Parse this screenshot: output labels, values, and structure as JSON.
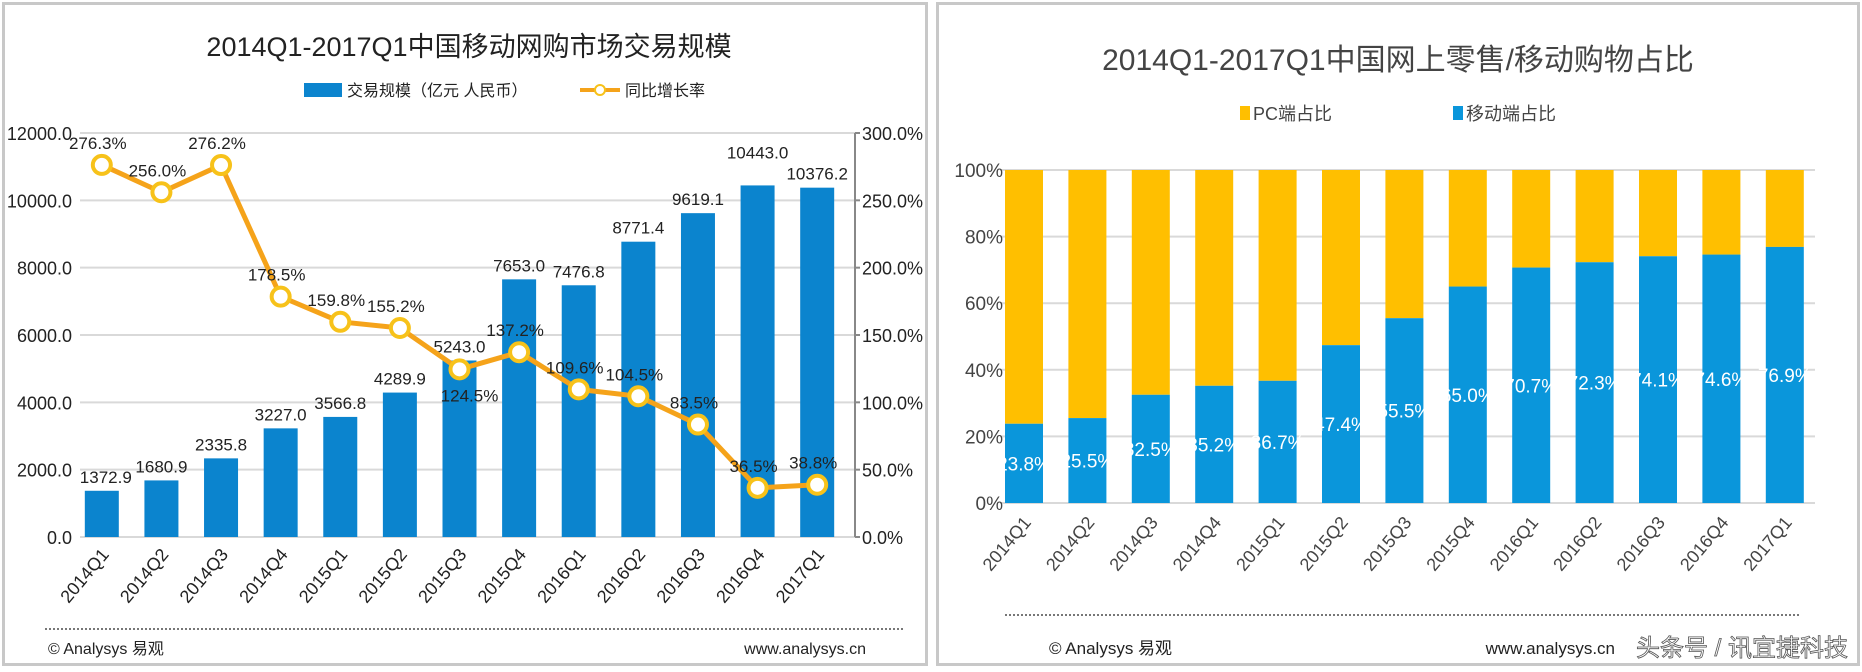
{
  "chart_data": [
    {
      "type": "bar+line",
      "title": "2014Q1-2017Q1中国移动网购市场交易规模",
      "categories": [
        "2014Q1",
        "2014Q2",
        "2014Q3",
        "2014Q4",
        "2015Q1",
        "2015Q2",
        "2015Q3",
        "2015Q4",
        "2016Q1",
        "2016Q2",
        "2016Q3",
        "2016Q4",
        "2017Q1"
      ],
      "series": [
        {
          "name": "交易规模（亿元 人民币）",
          "type": "bar",
          "axis": "left",
          "color": "#0B84CE",
          "values": [
            1372.9,
            1680.9,
            2335.8,
            3227.0,
            3566.8,
            4289.9,
            5243.0,
            7653.0,
            7476.8,
            8771.4,
            9619.1,
            10443.0,
            10376.2
          ]
        },
        {
          "name": "同比增长率",
          "type": "line",
          "axis": "right",
          "color": "#F5A31A",
          "values": [
            276.3,
            256.0,
            276.2,
            178.5,
            159.8,
            155.2,
            124.5,
            137.2,
            109.6,
            104.5,
            83.5,
            36.5,
            38.8
          ]
        }
      ],
      "left_axis": {
        "ylim": [
          0,
          12000
        ],
        "ticks": [
          "0.0",
          "2000.0",
          "4000.0",
          "6000.0",
          "8000.0",
          "10000.0",
          "12000.0"
        ]
      },
      "right_axis": {
        "ylim": [
          0,
          300
        ],
        "ticks": [
          "0.0%",
          "50.0%",
          "100.0%",
          "150.0%",
          "200.0%",
          "250.0%",
          "300.0%"
        ]
      },
      "grid": true,
      "legend": "top",
      "footer_left": "© Analysys 易观",
      "footer_right": "www.analysys.cn"
    },
    {
      "type": "stacked-bar",
      "title": "2014Q1-2017Q1中国网上零售/移动购物占比",
      "categories": [
        "2014Q1",
        "2014Q2",
        "2014Q3",
        "2014Q4",
        "2015Q1",
        "2015Q2",
        "2015Q3",
        "2015Q4",
        "2016Q1",
        "2016Q2",
        "2016Q3",
        "2016Q4",
        "2017Q1"
      ],
      "series": [
        {
          "name": "PC端占比",
          "color": "#FFBF00",
          "values": [
            76.2,
            74.5,
            67.5,
            64.8,
            63.3,
            52.6,
            44.5,
            35.0,
            29.3,
            27.7,
            25.9,
            25.4,
            23.1
          ]
        },
        {
          "name": "移动端占比",
          "color": "#0A96DB",
          "values": [
            23.8,
            25.5,
            32.5,
            35.2,
            36.7,
            47.4,
            55.5,
            65.0,
            70.7,
            72.3,
            74.1,
            74.6,
            76.9
          ],
          "labels": [
            "23.8%",
            "25.5%",
            "32.5%",
            "35.2%",
            "36.7%",
            "47.4%",
            "55.5%",
            "65.0%",
            "70.7%",
            "72.3%",
            "74.1%",
            "74.6%",
            "76.9%"
          ]
        }
      ],
      "ylim": [
        0,
        100
      ],
      "ticks": [
        "0%",
        "20%",
        "40%",
        "60%",
        "80%",
        "100%"
      ],
      "grid": true,
      "legend": "top",
      "footer_left": "© Analysys 易观",
      "footer_right": "www.analysys.cn",
      "watermark": "头条号 / 讯宜捷科技"
    }
  ]
}
